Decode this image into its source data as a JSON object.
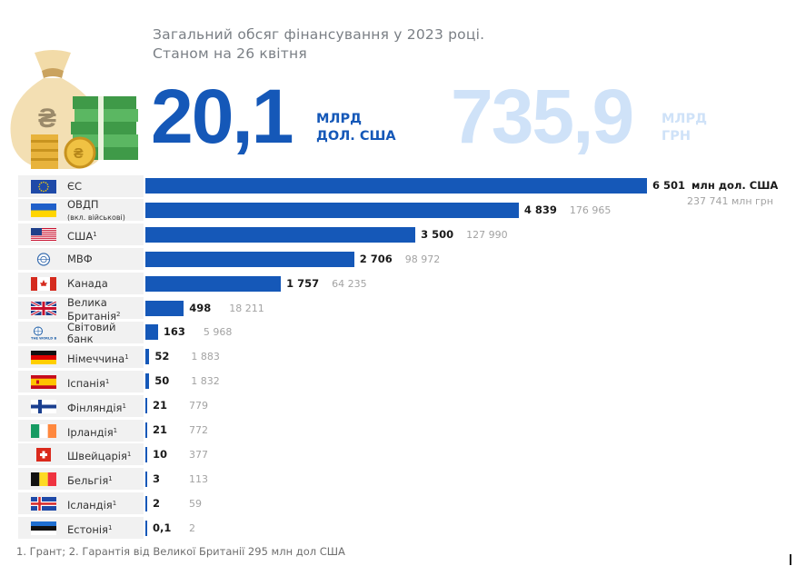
{
  "header": {
    "subtitle_line1": "Загальний обсяг фінансування у 2023 році.",
    "subtitle_line2": "Станом на 26 квітня",
    "total_usd_value": "20,1",
    "total_usd_unit_line1": "МЛРД",
    "total_usd_unit_line2": "ДОЛ. США",
    "total_uah_value": "735,9",
    "total_uah_unit_line1": "МЛРД",
    "total_uah_unit_line2": "ГРН"
  },
  "chart_data": {
    "type": "bar",
    "orientation": "horizontal",
    "usd_unit_label": "млн дол. США",
    "uah_unit_label": "237 741 млн грн",
    "categories": [
      "ЄС",
      "ОВДП",
      "США",
      "МВФ",
      "Канада",
      "Велика Британія",
      "Світовий банк",
      "Німеччина",
      "Іспанія",
      "Фінляндія",
      "Ірландія",
      "Швейцарія",
      "Бельгія",
      "Ісландія",
      "Естонія"
    ],
    "series": [
      {
        "values": [
          6501,
          4839,
          3500,
          2706,
          1757,
          498,
          163,
          52,
          50,
          21,
          21,
          10,
          3,
          2,
          0.1
        ]
      },
      {
        "values": [
          237741,
          176965,
          127990,
          98972,
          64235,
          18211,
          5968,
          1883,
          1832,
          779,
          772,
          377,
          113,
          59,
          2
        ]
      }
    ],
    "colors": {
      "bar": "#1558b8",
      "secondary_text": "#a3a3a3"
    },
    "rows": [
      {
        "name": "ЄС",
        "name2": "",
        "sub": "",
        "sup": "",
        "flag": "eu-flag",
        "usd": 6501,
        "usd_label": "6 501",
        "uah_label": ""
      },
      {
        "name": "ОВДП",
        "name2": "",
        "sub": "(вкл. військові)",
        "sup": "",
        "flag": "ukraine-flag",
        "usd": 4839,
        "usd_label": "4 839",
        "uah_label": "176 965"
      },
      {
        "name": "США",
        "name2": "",
        "sub": "",
        "sup": "1",
        "flag": "usa-flag",
        "usd": 3500,
        "usd_label": "3 500",
        "uah_label": "127 990"
      },
      {
        "name": "МВФ",
        "name2": "",
        "sub": "",
        "sup": "",
        "flag": "imf-logo",
        "usd": 2706,
        "usd_label": "2 706",
        "uah_label": "98 972"
      },
      {
        "name": "Канада",
        "name2": "",
        "sub": "",
        "sup": "",
        "flag": "canada-flag",
        "usd": 1757,
        "usd_label": "1 757",
        "uah_label": "64 235"
      },
      {
        "name": "Велика",
        "name2": "Британія",
        "sub": "",
        "sup": "2",
        "flag": "uk-flag",
        "usd": 498,
        "usd_label": "498",
        "uah_label": "18 211"
      },
      {
        "name": "Світовий",
        "name2": "банк",
        "sub": "",
        "sup": "",
        "flag": "world-bank-logo",
        "usd": 163,
        "usd_label": "163",
        "uah_label": "5 968"
      },
      {
        "name": "Німеччина",
        "name2": "",
        "sub": "",
        "sup": "1",
        "flag": "germany-flag",
        "usd": 52,
        "usd_label": "52",
        "uah_label": "1 883"
      },
      {
        "name": "Іспанія",
        "name2": "",
        "sub": "",
        "sup": "1",
        "flag": "spain-flag",
        "usd": 50,
        "usd_label": "50",
        "uah_label": "1 832"
      },
      {
        "name": "Фінляндія",
        "name2": "",
        "sub": "",
        "sup": "1",
        "flag": "finland-flag",
        "usd": 21,
        "usd_label": "21",
        "uah_label": "779"
      },
      {
        "name": "Ірландія",
        "name2": "",
        "sub": "",
        "sup": "1",
        "flag": "ireland-flag",
        "usd": 21,
        "usd_label": "21",
        "uah_label": "772"
      },
      {
        "name": "Швейцарія",
        "name2": "",
        "sub": "",
        "sup": "1",
        "flag": "switzerland-flag",
        "usd": 10,
        "usd_label": "10",
        "uah_label": "377"
      },
      {
        "name": "Бельгія",
        "name2": "",
        "sub": "",
        "sup": "1",
        "flag": "belgium-flag",
        "usd": 3,
        "usd_label": "3",
        "uah_label": "113"
      },
      {
        "name": "Ісландія",
        "name2": "",
        "sub": "",
        "sup": "1",
        "flag": "iceland-flag",
        "usd": 2,
        "usd_label": "2",
        "uah_label": "59"
      },
      {
        "name": "Естонія",
        "name2": "",
        "sub": "",
        "sup": "1",
        "flag": "estonia-flag",
        "usd": 0.1,
        "usd_label": "0,1",
        "uah_label": "2"
      }
    ]
  },
  "world_bank_logo_text": "THE WORLD BANK",
  "footnote": "1. Грант; 2. Гарантія від Великої Британії 295 млн дол США"
}
